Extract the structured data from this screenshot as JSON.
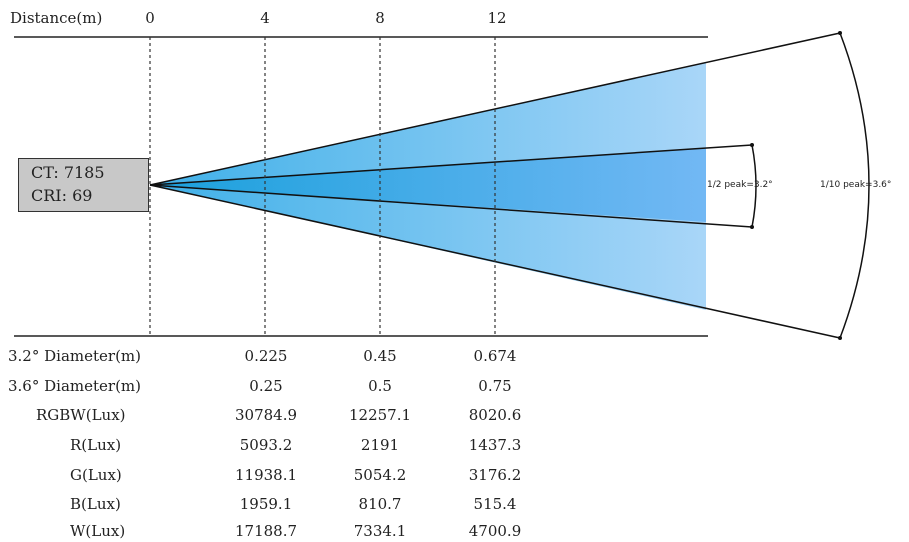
{
  "header": {
    "distance_label": "Distance(m)",
    "ticks": [
      "0",
      "4",
      "8",
      "12"
    ]
  },
  "fixture": {
    "ct": "CT: 7185",
    "cri": "CRI: 69"
  },
  "beam": {
    "half_peak_label": "1/2 peak=3.2°",
    "tenth_peak_label": "1/10 peak=3.6°",
    "colors": {
      "light": "#a7d4f7",
      "mid": "#5fb8ee",
      "dark": "#2aa6e0"
    }
  },
  "table": {
    "rows": [
      {
        "label": "3.2° Diameter(m)",
        "values": [
          "0.225",
          "0.45",
          "0.674"
        ]
      },
      {
        "label": "3.6° Diameter(m)",
        "values": [
          "0.25",
          "0.5",
          "0.75"
        ]
      },
      {
        "label": "RGBW(Lux)",
        "values": [
          "30784.9",
          "12257.1",
          "8020.6"
        ]
      },
      {
        "label": "R(Lux)",
        "values": [
          "5093.2",
          "2191",
          "1437.3"
        ]
      },
      {
        "label": "G(Lux)",
        "values": [
          "11938.1",
          "5054.2",
          "3176.2"
        ]
      },
      {
        "label": "B(Lux)",
        "values": [
          "1959.1",
          "810.7",
          "515.4"
        ]
      },
      {
        "label": "W(Lux)",
        "values": [
          "17188.7",
          "7334.1",
          "4700.9"
        ]
      }
    ]
  }
}
